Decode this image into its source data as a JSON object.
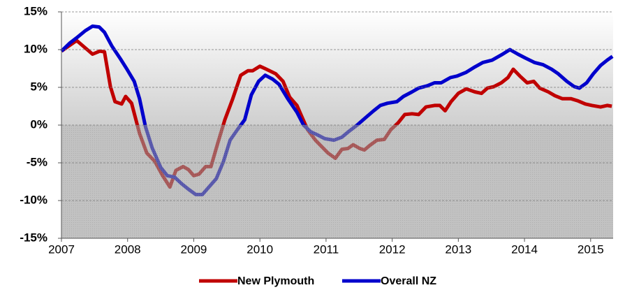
{
  "chart_data": {
    "type": "line",
    "xlim": [
      2007,
      2015.34
    ],
    "xticks": [
      2007,
      2008,
      2009,
      2010,
      2011,
      2012,
      2013,
      2014,
      2015
    ],
    "ylim": [
      -15,
      15
    ],
    "yticks": [
      {
        "value": -15,
        "label": "-15%"
      },
      {
        "value": -10,
        "label": "-10%"
      },
      {
        "value": -5,
        "label": "-5%"
      },
      {
        "value": 0,
        "label": "0%"
      },
      {
        "value": 5,
        "label": "5%"
      },
      {
        "value": 10,
        "label": "10%"
      },
      {
        "value": 15,
        "label": "15%"
      }
    ],
    "grid": true,
    "legend": "bottom",
    "series": [
      {
        "name": "New Plymouth",
        "color": "#c00000",
        "x": [
          2007.0,
          2007.23,
          2007.47,
          2007.58,
          2007.65,
          2007.74,
          2007.81,
          2007.91,
          2007.97,
          2008.06,
          2008.18,
          2008.29,
          2008.41,
          2008.53,
          2008.64,
          2008.73,
          2008.84,
          2008.92,
          2009.0,
          2009.08,
          2009.18,
          2009.26,
          2009.36,
          2009.47,
          2009.59,
          2009.71,
          2009.82,
          2009.89,
          2010.0,
          2010.1,
          2010.24,
          2010.35,
          2010.45,
          2010.56,
          2010.63,
          2010.72,
          2010.84,
          2010.95,
          2011.03,
          2011.14,
          2011.24,
          2011.33,
          2011.41,
          2011.51,
          2011.58,
          2011.66,
          2011.77,
          2011.88,
          2011.98,
          2012.09,
          2012.19,
          2012.3,
          2012.4,
          2012.51,
          2012.64,
          2012.72,
          2012.8,
          2012.89,
          2013.0,
          2013.12,
          2013.25,
          2013.35,
          2013.44,
          2013.54,
          2013.65,
          2013.75,
          2013.83,
          2013.93,
          2014.04,
          2014.14,
          2014.23,
          2014.36,
          2014.46,
          2014.57,
          2014.7,
          2014.81,
          2014.92,
          2015.02,
          2015.15,
          2015.25,
          2015.32
        ],
        "values": [
          9.8,
          11.2,
          9.4,
          9.8,
          9.7,
          5.1,
          3.1,
          2.8,
          3.8,
          2.9,
          -1.1,
          -3.7,
          -4.8,
          -6.7,
          -8.2,
          -6.0,
          -5.5,
          -5.9,
          -6.7,
          -6.5,
          -5.5,
          -5.5,
          -2.5,
          0.7,
          3.5,
          6.6,
          7.2,
          7.2,
          7.8,
          7.4,
          6.8,
          5.8,
          3.7,
          2.6,
          1.2,
          -0.6,
          -2.0,
          -3.0,
          -3.7,
          -4.4,
          -3.2,
          -3.1,
          -2.6,
          -3.1,
          -3.3,
          -2.7,
          -2.0,
          -1.9,
          -0.6,
          0.3,
          1.4,
          1.5,
          1.4,
          2.4,
          2.6,
          2.6,
          1.9,
          3.1,
          4.2,
          4.8,
          4.4,
          4.2,
          4.9,
          5.1,
          5.6,
          6.3,
          7.4,
          6.5,
          5.6,
          5.8,
          4.9,
          4.4,
          3.9,
          3.5,
          3.5,
          3.2,
          2.8,
          2.6,
          2.4,
          2.6,
          2.5
        ]
      },
      {
        "name": "Overall NZ",
        "color": "#0000cc",
        "x": [
          2007.0,
          2007.13,
          2007.25,
          2007.36,
          2007.47,
          2007.57,
          2007.65,
          2007.76,
          2007.89,
          2007.99,
          2008.1,
          2008.18,
          2008.27,
          2008.37,
          2008.5,
          2008.6,
          2008.71,
          2008.82,
          2008.92,
          2009.03,
          2009.13,
          2009.24,
          2009.34,
          2009.45,
          2009.55,
          2009.66,
          2009.77,
          2009.87,
          2009.98,
          2010.08,
          2010.19,
          2010.29,
          2010.42,
          2010.56,
          2010.66,
          2010.77,
          2010.87,
          2010.98,
          2011.12,
          2011.24,
          2011.35,
          2011.47,
          2011.6,
          2011.72,
          2011.82,
          2011.93,
          2012.07,
          2012.17,
          2012.3,
          2012.4,
          2012.53,
          2012.64,
          2012.74,
          2012.88,
          2012.98,
          2013.12,
          2013.25,
          2013.37,
          2013.51,
          2013.65,
          2013.78,
          2013.9,
          2014.01,
          2014.15,
          2014.28,
          2014.41,
          2014.51,
          2014.64,
          2014.75,
          2014.83,
          2014.94,
          2015.04,
          2015.15,
          2015.25,
          2015.33
        ],
        "values": [
          9.8,
          10.9,
          11.7,
          12.5,
          13.1,
          13.0,
          12.3,
          10.5,
          8.8,
          7.4,
          5.8,
          3.5,
          -0.2,
          -3.0,
          -5.6,
          -6.7,
          -6.9,
          -7.8,
          -8.5,
          -9.2,
          -9.2,
          -8.1,
          -7.1,
          -4.8,
          -2.0,
          -0.6,
          0.7,
          4.0,
          5.8,
          6.6,
          6.1,
          5.4,
          3.5,
          1.7,
          0.0,
          -0.9,
          -1.3,
          -1.8,
          -2.0,
          -1.6,
          -0.8,
          0.0,
          1.0,
          1.9,
          2.6,
          2.9,
          3.1,
          3.8,
          4.4,
          4.9,
          5.2,
          5.6,
          5.6,
          6.3,
          6.5,
          7.0,
          7.7,
          8.3,
          8.6,
          9.3,
          10.0,
          9.4,
          8.9,
          8.3,
          8.0,
          7.4,
          6.8,
          5.8,
          5.1,
          4.9,
          5.6,
          6.8,
          7.9,
          8.6,
          9.1
        ]
      }
    ]
  }
}
